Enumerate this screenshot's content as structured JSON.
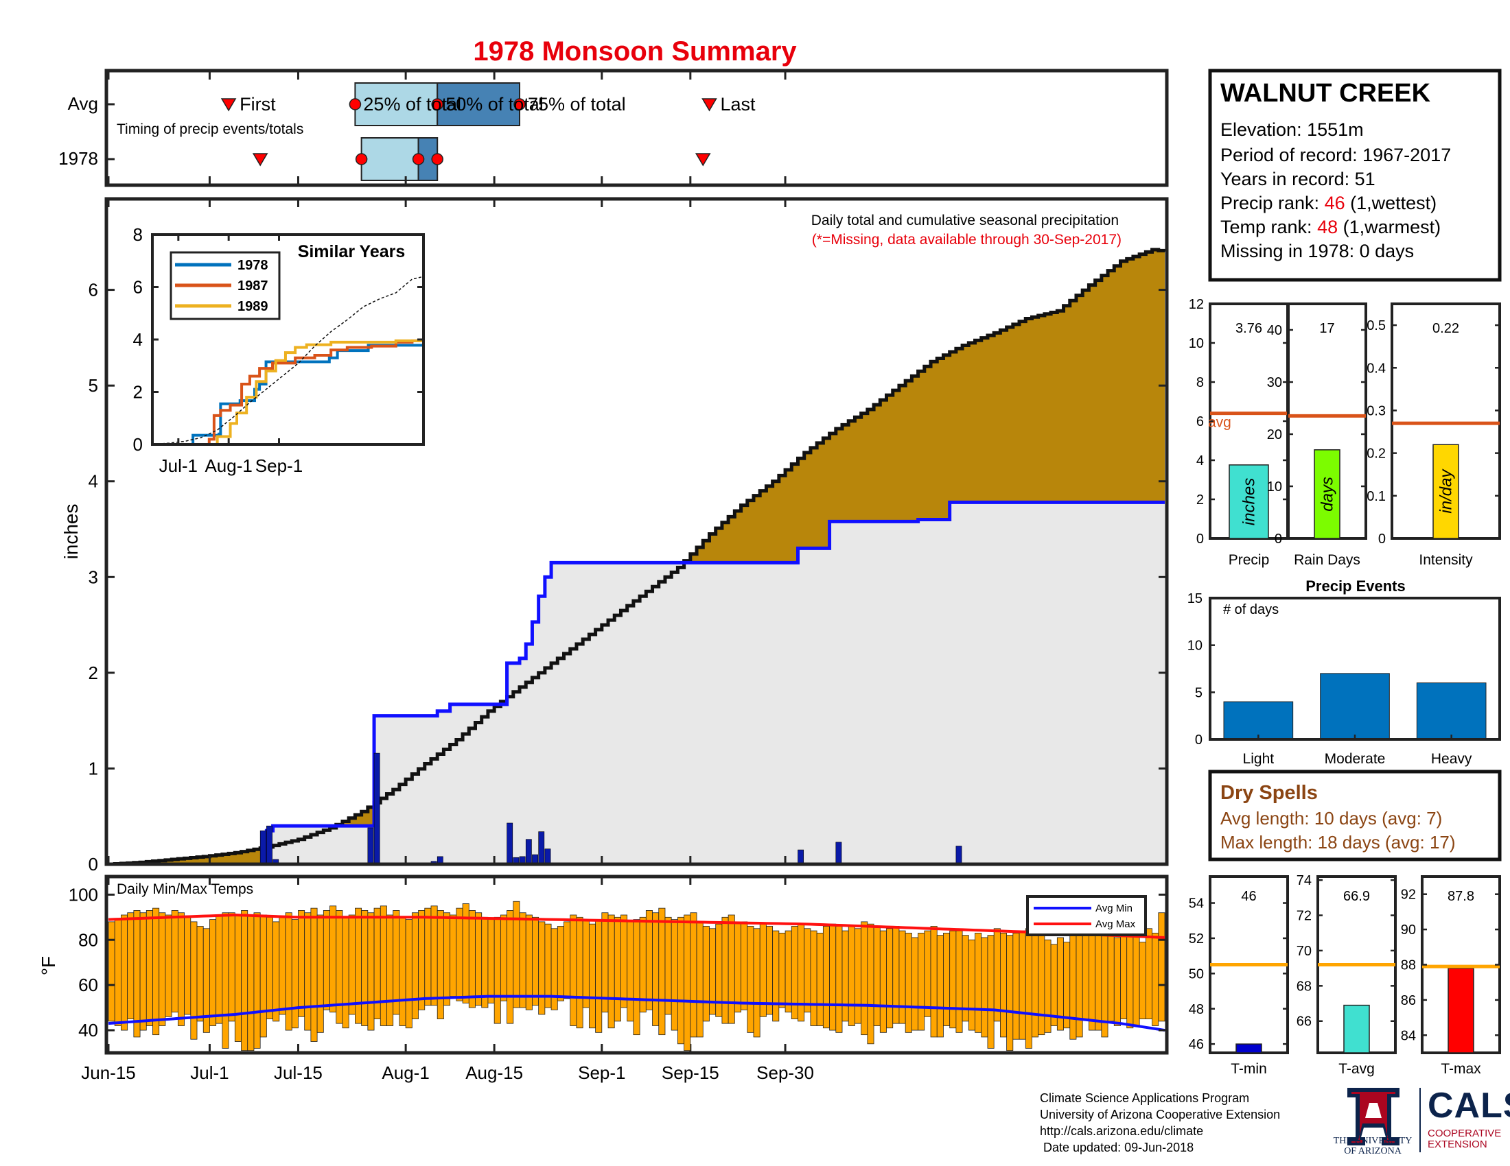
{
  "title": "1978 Monsoon Summary",
  "timing": {
    "row_labels": [
      "Avg",
      "1978"
    ],
    "subtitle": "Timing of precip events/totals",
    "first_label": "First",
    "last_label": "Last",
    "q25_label": "25% of total",
    "q50_label": "50% of total",
    "q75_label": "75% of total",
    "avg": {
      "first": "2018-07-04",
      "q25": "2018-07-24",
      "q50": "2018-08-06",
      "q75": "2018-08-19",
      "last": "2018-09-18"
    },
    "year": {
      "first": "2018-07-09",
      "q25": "2018-07-25",
      "q50": "2018-08-03",
      "q75": "2018-08-06",
      "last": "2018-09-17"
    }
  },
  "station": {
    "name": "WALNUT CREEK",
    "elevation_label": "Elevation: 1551m",
    "period_label": "Period of record: 1967-2017",
    "years_label": "Years in record: 51",
    "precip_rank_prefix": "Precip rank: ",
    "precip_rank_value": "46",
    "precip_rank_suffix": " (1,wettest)",
    "temp_rank_prefix": "Temp rank: ",
    "temp_rank_value": "48",
    "temp_rank_suffix": " (1,warmest)",
    "missing_label": "Missing in 1978: 0 days"
  },
  "main_chart": {
    "ylabel": "inches",
    "note": "Daily total and cumulative seasonal precipitation",
    "note_missing": "(*=Missing, data available through 30-Sep-2017)",
    "x_ticks": [
      "Jun-15",
      "Jul-1",
      "Jul-15",
      "Aug-1",
      "Aug-15",
      "Sep-1",
      "Sep-15",
      "Sep-30"
    ]
  },
  "inset": {
    "title": "Similar Years",
    "legend": [
      {
        "name": "1978",
        "color": "#0072bd"
      },
      {
        "name": "1987",
        "color": "#d95319"
      },
      {
        "name": "1989",
        "color": "#edb120"
      }
    ],
    "x_ticks": [
      "Jul-1",
      "Aug-1",
      "Sep-1"
    ]
  },
  "temp_chart": {
    "title": "Daily Min/Max Temps",
    "ylabel": "°F",
    "legend_min": "Avg Min",
    "legend_max": "Avg Max"
  },
  "mini": {
    "precip": {
      "label": "Precip",
      "value_label": "3.76",
      "unit": "inches",
      "avg_label": "avg"
    },
    "rain_days": {
      "label": "Rain Days",
      "value_label": "17",
      "unit": "days"
    },
    "intensity": {
      "label": "Intensity",
      "value_label": "0.22",
      "unit": "in/day"
    }
  },
  "events": {
    "title": "Precip Events",
    "ylabel": "# of days"
  },
  "dry_spells": {
    "title": "Dry Spells",
    "avg_line": "Avg length: 10 days (avg: 7)",
    "max_line": "Max length: 18 days (avg: 17)"
  },
  "temp_mini": {
    "tmin": {
      "label": "T-min",
      "value_label": "46"
    },
    "tavg": {
      "label": "T-avg",
      "value_label": "66.9"
    },
    "tmax": {
      "label": "T-max",
      "value_label": "87.8"
    }
  },
  "credits": {
    "line1": "Climate Science Applications Program",
    "line2": "University of Arizona Cooperative Extension",
    "line3": "http://cals.arizona.edu/climate",
    "line4": " Date updated: 09-Jun-2018"
  },
  "logos": {
    "ua_line1": "THE UNIVERSITY",
    "ua_line2": "OF ARIZONA",
    "cals": "CALS",
    "cals_line1": "COOPERATIVE",
    "cals_line2": "EXTENSION"
  },
  "colors": {
    "title_red": "#e8000b",
    "avg_fill": "#b8860b",
    "year_fill": "#e8e8e8",
    "year_line": "#1010ff",
    "daily_bar": "#0a1aa8",
    "temp_bar": "#ffa500",
    "avg_min": "#1010ff",
    "avg_max": "#ff1010",
    "precip_bar": "#40e0d0",
    "raindays_bar": "#7cfc00",
    "intensity_bar": "#ffd700",
    "events_bar": "#0072bd",
    "avg_line": "#d95319",
    "tavg_ref": "#ffa500",
    "dry_brown": "#8b4513"
  },
  "chart_data": [
    {
      "type": "area",
      "name_note": "main cumulative precipitation",
      "start": "2018-06-15",
      "ylim": [
        0,
        7
      ],
      "yticks": [
        0,
        1,
        2,
        3,
        4,
        5,
        6
      ],
      "avg_cumulative": [
        [
          0,
          0
        ],
        [
          5,
          0.02
        ],
        [
          10,
          0.05
        ],
        [
          15,
          0.08
        ],
        [
          20,
          0.12
        ],
        [
          25,
          0.18
        ],
        [
          30,
          0.26
        ],
        [
          35,
          0.38
        ],
        [
          40,
          0.55
        ],
        [
          45,
          0.78
        ],
        [
          50,
          1.05
        ],
        [
          55,
          1.3
        ],
        [
          60,
          1.6
        ],
        [
          65,
          1.85
        ],
        [
          70,
          2.1
        ],
        [
          75,
          2.35
        ],
        [
          80,
          2.6
        ],
        [
          85,
          2.85
        ],
        [
          90,
          3.1
        ],
        [
          95,
          3.45
        ],
        [
          100,
          3.75
        ],
        [
          105,
          4.0
        ],
        [
          110,
          4.3
        ],
        [
          115,
          4.55
        ],
        [
          120,
          4.75
        ],
        [
          125,
          5.0
        ],
        [
          130,
          5.25
        ],
        [
          135,
          5.42
        ],
        [
          140,
          5.55
        ],
        [
          145,
          5.7
        ],
        [
          150,
          5.78
        ],
        [
          155,
          6.05
        ],
        [
          160,
          6.3
        ],
        [
          165,
          6.42
        ],
        [
          167,
          6.4
        ]
      ],
      "year_cumulative": [
        [
          0,
          0
        ],
        [
          24,
          0
        ],
        [
          25,
          0.35
        ],
        [
          26,
          0.4
        ],
        [
          41,
          0.4
        ],
        [
          42,
          1.55
        ],
        [
          50,
          1.55
        ],
        [
          52,
          1.6
        ],
        [
          54,
          1.67
        ],
        [
          62,
          1.67
        ],
        [
          63,
          2.1
        ],
        [
          65,
          2.15
        ],
        [
          66,
          2.3
        ],
        [
          67,
          2.53
        ],
        [
          68,
          2.8
        ],
        [
          69,
          3.0
        ],
        [
          70,
          3.15
        ],
        [
          108,
          3.15
        ],
        [
          109,
          3.3
        ],
        [
          114,
          3.58
        ],
        [
          128,
          3.6
        ],
        [
          133,
          3.78
        ],
        [
          167,
          3.78
        ]
      ],
      "year_daily": [
        [
          24,
          0.35
        ],
        [
          25,
          0.4
        ],
        [
          26,
          0.05
        ],
        [
          41,
          0.38
        ],
        [
          42,
          1.16
        ],
        [
          51,
          0.03
        ],
        [
          52,
          0.08
        ],
        [
          63,
          0.43
        ],
        [
          64,
          0.07
        ],
        [
          65,
          0.08
        ],
        [
          66,
          0.26
        ],
        [
          67,
          0.1
        ],
        [
          68,
          0.34
        ],
        [
          69,
          0.16
        ],
        [
          109,
          0.15
        ],
        [
          115,
          0.23
        ],
        [
          134,
          0.19
        ]
      ]
    },
    {
      "type": "line",
      "name_note": "inset similar years",
      "ylim": [
        0,
        8
      ],
      "yticks": [
        0,
        2,
        4,
        6,
        8
      ],
      "series": [
        {
          "name": "1978",
          "values": [
            [
              0,
              0
            ],
            [
              24,
              0
            ],
            [
              25,
              0.35
            ],
            [
              41,
              0.4
            ],
            [
              42,
              1.55
            ],
            [
              54,
              1.67
            ],
            [
              63,
              2.1
            ],
            [
              66,
              2.3
            ],
            [
              70,
              3.15
            ],
            [
              109,
              3.3
            ],
            [
              114,
              3.58
            ],
            [
              133,
              3.78
            ],
            [
              167,
              3.8
            ]
          ]
        },
        {
          "name": "1987",
          "values": [
            [
              0,
              0
            ],
            [
              30,
              0
            ],
            [
              35,
              0.2
            ],
            [
              38,
              1.1
            ],
            [
              42,
              1.3
            ],
            [
              48,
              1.5
            ],
            [
              55,
              2.3
            ],
            [
              60,
              2.6
            ],
            [
              66,
              2.9
            ],
            [
              74,
              3.1
            ],
            [
              80,
              3.1
            ],
            [
              88,
              3.3
            ],
            [
              100,
              3.4
            ],
            [
              110,
              3.6
            ],
            [
              120,
              3.7
            ],
            [
              135,
              3.75
            ],
            [
              150,
              3.9
            ],
            [
              160,
              3.95
            ],
            [
              167,
              4.0
            ]
          ]
        },
        {
          "name": "1989",
          "values": [
            [
              0,
              0
            ],
            [
              30,
              0
            ],
            [
              40,
              0.3
            ],
            [
              48,
              0.8
            ],
            [
              52,
              1.2
            ],
            [
              58,
              1.8
            ],
            [
              64,
              2.4
            ],
            [
              70,
              2.8
            ],
            [
              76,
              3.2
            ],
            [
              82,
              3.5
            ],
            [
              88,
              3.7
            ],
            [
              95,
              3.8
            ],
            [
              110,
              3.9
            ],
            [
              130,
              3.9
            ],
            [
              150,
              3.95
            ],
            [
              167,
              3.95
            ]
          ]
        },
        {
          "name": "avg",
          "values": [
            [
              0,
              0
            ],
            [
              10,
              0.05
            ],
            [
              20,
              0.12
            ],
            [
              30,
              0.26
            ],
            [
              40,
              0.55
            ],
            [
              50,
              1.05
            ],
            [
              60,
              1.6
            ],
            [
              70,
              2.1
            ],
            [
              80,
              2.6
            ],
            [
              90,
              3.1
            ],
            [
              100,
              3.75
            ],
            [
              110,
              4.3
            ],
            [
              120,
              4.75
            ],
            [
              130,
              5.25
            ],
            [
              140,
              5.55
            ],
            [
              150,
              5.78
            ],
            [
              160,
              6.3
            ],
            [
              167,
              6.4
            ]
          ]
        }
      ]
    },
    {
      "type": "bar",
      "name_note": "daily temperature ranges",
      "ylim": [
        30,
        108
      ],
      "yticks": [
        40,
        60,
        80,
        100
      ],
      "tmax": [
        88,
        89,
        91,
        92,
        93,
        92,
        93,
        94,
        92,
        91,
        93,
        92,
        90,
        88,
        86,
        85,
        89,
        91,
        92,
        92,
        91,
        93,
        91,
        92,
        91,
        90,
        88,
        90,
        92,
        89,
        93,
        92,
        94,
        91,
        93,
        95,
        93,
        90,
        91,
        94,
        93,
        92,
        94,
        95,
        91,
        93,
        90,
        89,
        92,
        93,
        94,
        95,
        93,
        92,
        91,
        94,
        96,
        93,
        92,
        90,
        89,
        90,
        91,
        93,
        97,
        92,
        91,
        90,
        88,
        87,
        85,
        86,
        88,
        91,
        90,
        89,
        87,
        89,
        92,
        91,
        90,
        91,
        88,
        89,
        90,
        93,
        92,
        94,
        90,
        89,
        90,
        91,
        92,
        88,
        86,
        85,
        87,
        90,
        91,
        88,
        88,
        86,
        85,
        87,
        86,
        84,
        83,
        84,
        86,
        87,
        85,
        84,
        83,
        86,
        87,
        86,
        84,
        86,
        85,
        88,
        87,
        86,
        84,
        85,
        86,
        84,
        83,
        81,
        83,
        84,
        86,
        82,
        83,
        84,
        84,
        82,
        80,
        83,
        81,
        82,
        85,
        83,
        82,
        83,
        84,
        85,
        86,
        82,
        80,
        78,
        81,
        79,
        85,
        84,
        82,
        83,
        83,
        86,
        82,
        81,
        85,
        84,
        86,
        79,
        85,
        83,
        92
      ],
      "tmin": [
        44,
        42,
        40,
        45,
        37,
        40,
        42,
        38,
        42,
        46,
        48,
        42,
        47,
        36,
        44,
        39,
        42,
        43,
        32,
        44,
        35,
        31,
        31,
        32,
        37,
        45,
        44,
        47,
        40,
        41,
        46,
        40,
        35,
        39,
        49,
        48,
        43,
        41,
        47,
        43,
        42,
        40,
        45,
        42,
        42,
        47,
        42,
        41,
        45,
        49,
        51,
        51,
        45,
        51,
        55,
        53,
        52,
        50,
        51,
        50,
        52,
        43,
        53,
        43,
        50,
        50,
        49,
        51,
        47,
        50,
        49,
        53,
        54,
        42,
        41,
        50,
        41,
        39,
        48,
        41,
        44,
        50,
        44,
        38,
        48,
        49,
        42,
        38,
        47,
        40,
        34,
        31,
        37,
        37,
        44,
        47,
        46,
        43,
        43,
        48,
        49,
        39,
        37,
        46,
        47,
        44,
        50,
        48,
        45,
        44,
        48,
        42,
        42,
        41,
        40,
        39,
        44,
        42,
        43,
        38,
        34,
        42,
        39,
        41,
        43,
        43,
        39,
        40,
        40,
        46,
        37,
        37,
        42,
        41,
        39,
        44,
        40,
        39,
        37,
        32,
        44,
        37,
        31,
        36,
        36,
        32,
        37,
        38,
        39,
        42,
        40,
        41,
        36,
        37,
        45,
        40,
        40,
        37,
        44,
        42,
        45,
        41,
        42,
        45,
        45,
        42,
        44,
        47
      ],
      "avg_max": [
        [
          0,
          89
        ],
        [
          10,
          90
        ],
        [
          20,
          91
        ],
        [
          30,
          90
        ],
        [
          50,
          90
        ],
        [
          70,
          89
        ],
        [
          90,
          88
        ],
        [
          110,
          87
        ],
        [
          130,
          85
        ],
        [
          150,
          83
        ],
        [
          167,
          81
        ]
      ],
      "avg_min": [
        [
          0,
          43
        ],
        [
          10,
          45
        ],
        [
          20,
          47
        ],
        [
          30,
          50
        ],
        [
          40,
          52
        ],
        [
          50,
          54
        ],
        [
          60,
          55
        ],
        [
          70,
          55
        ],
        [
          80,
          54
        ],
        [
          100,
          52
        ],
        [
          120,
          51
        ],
        [
          140,
          49
        ],
        [
          150,
          46
        ],
        [
          160,
          43
        ],
        [
          167,
          40
        ]
      ]
    },
    {
      "type": "bar",
      "name_note": "Precip",
      "ylim": [
        0,
        12
      ],
      "values": [
        3.76
      ],
      "avg": 6.4
    },
    {
      "type": "bar",
      "name_note": "Rain Days",
      "ylim": [
        0,
        45
      ],
      "values": [
        17
      ],
      "avg": 23.5
    },
    {
      "type": "bar",
      "name_note": "Intensity",
      "ylim": [
        0,
        0.55
      ],
      "values": [
        0.22
      ],
      "avg": 0.27
    },
    {
      "type": "bar",
      "name_note": "Precip Events",
      "categories": [
        "Light",
        "Moderate",
        "Heavy"
      ],
      "values": [
        4,
        7,
        6
      ],
      "ylim": [
        0,
        15
      ],
      "yticks": [
        0,
        5,
        10,
        15
      ]
    },
    {
      "type": "bar",
      "name_note": "T-min",
      "ylim": [
        45.5,
        55.5
      ],
      "values": [
        46
      ],
      "avg": 50.5
    },
    {
      "type": "bar",
      "name_note": "T-avg",
      "ylim": [
        64.2,
        74.2
      ],
      "values": [
        66.9
      ],
      "avg": 69.2
    },
    {
      "type": "bar",
      "name_note": "T-max",
      "ylim": [
        83,
        93
      ],
      "values": [
        87.8
      ],
      "avg": 87.9
    }
  ]
}
